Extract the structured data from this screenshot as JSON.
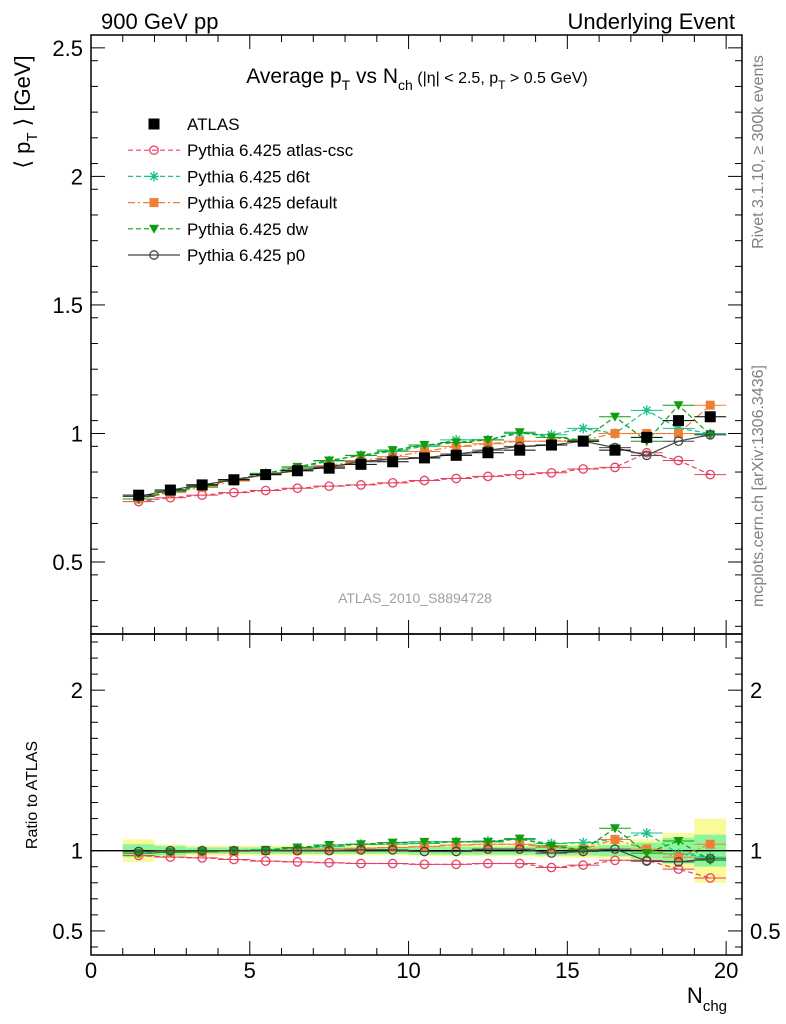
{
  "header": {
    "left": "900 GeV pp",
    "right": "Underlying Event"
  },
  "side_texts": {
    "rivet": "Rivet 3.1.10, ≥ 300k events",
    "mcplots": "mcplots.cern.ch [arXiv:1306.3436]"
  },
  "watermark": "ATLAS_2010_S8894728",
  "title": {
    "main": "Average p",
    "sub_t": "T",
    "vs": " vs N",
    "sub_ch": "ch",
    "cuts_a": "(|η| < 2.5, p",
    "cuts_t": "T",
    "cuts_b": " > 0.5 GeV)"
  },
  "ylabel": {
    "open": "⟨ p",
    "sub": "T",
    "close": " ⟩ [GeV]"
  },
  "ratio_ylabel": "Ratio to ATLAS",
  "xlabel": {
    "main": "N",
    "sub": "chg"
  },
  "colors": {
    "atlas": "#000000",
    "atlas_csc": "#e8415f",
    "d6t": "#1ac18a",
    "default": "#f07f35",
    "dw": "#109d10",
    "p0": "#444444",
    "band_inner": "#8ff59a",
    "band_outer": "#fbfa9a"
  },
  "chart_data": [
    {
      "type": "scatter",
      "panel": "main",
      "xlim": [
        0,
        20.5
      ],
      "ylim": [
        0.22,
        2.55
      ],
      "yticks": [
        0.5,
        1,
        1.5,
        2,
        2.5
      ],
      "x": [
        1.5,
        2.5,
        3.5,
        4.5,
        5.5,
        6.5,
        7.5,
        8.5,
        9.5,
        10.5,
        11.5,
        12.5,
        13.5,
        14.5,
        15.5,
        16.5,
        17.5,
        18.5,
        19.5
      ],
      "series": [
        {
          "name": "ATLAS",
          "key": "atlas",
          "marker": "square",
          "line": "none",
          "values": [
            0.76,
            0.78,
            0.8,
            0.82,
            0.84,
            0.855,
            0.865,
            0.88,
            0.89,
            0.905,
            0.915,
            0.925,
            0.935,
            0.955,
            0.97,
            0.935,
            0.985,
            1.05,
            1.065
          ]
        },
        {
          "name": "Pythia 6.425 atlas-csc",
          "key": "atlas_csc",
          "marker": "open-circle",
          "line": "dashed",
          "values": [
            0.735,
            0.75,
            0.76,
            0.77,
            0.778,
            0.787,
            0.795,
            0.8,
            0.808,
            0.817,
            0.825,
            0.833,
            0.84,
            0.847,
            0.862,
            0.868,
            0.925,
            0.895,
            0.84
          ]
        },
        {
          "name": "Pythia 6.425 d6t",
          "key": "d6t",
          "marker": "asterisk",
          "line": "dashed",
          "values": [
            0.745,
            0.775,
            0.795,
            0.82,
            0.845,
            0.865,
            0.893,
            0.915,
            0.93,
            0.95,
            0.975,
            0.975,
            1.0,
            0.995,
            1.02,
            1.0,
            1.09,
            1.02,
            1.0
          ]
        },
        {
          "name": "Pythia 6.425 default",
          "key": "default",
          "marker": "filled-square",
          "line": "dashdot",
          "values": [
            0.745,
            0.77,
            0.79,
            0.815,
            0.84,
            0.86,
            0.875,
            0.895,
            0.91,
            0.93,
            0.95,
            0.96,
            0.97,
            0.97,
            0.975,
            1.0,
            1.0,
            1.0,
            1.11
          ]
        },
        {
          "name": "Pythia 6.425 dw",
          "key": "dw",
          "marker": "down-triangle",
          "line": "dashed",
          "values": [
            0.745,
            0.775,
            0.795,
            0.82,
            0.845,
            0.87,
            0.895,
            0.915,
            0.935,
            0.955,
            0.965,
            0.975,
            1.005,
            0.985,
            0.975,
            1.065,
            0.97,
            1.11,
            0.995
          ]
        },
        {
          "name": "Pythia 6.425 p0",
          "key": "p0",
          "marker": "open-circle",
          "line": "solid",
          "values": [
            0.755,
            0.78,
            0.8,
            0.82,
            0.84,
            0.855,
            0.87,
            0.89,
            0.9,
            0.905,
            0.92,
            0.935,
            0.95,
            0.955,
            0.97,
            0.945,
            0.915,
            0.97,
            0.995
          ]
        }
      ]
    },
    {
      "type": "scatter",
      "panel": "ratio",
      "xlim": [
        0,
        20.5
      ],
      "ylim": [
        0.35,
        2.35
      ],
      "xticks": [
        0,
        5,
        10,
        15,
        20
      ],
      "yticks": [
        0.5,
        1,
        2
      ],
      "x": [
        1.5,
        2.5,
        3.5,
        4.5,
        5.5,
        6.5,
        7.5,
        8.5,
        9.5,
        10.5,
        11.5,
        12.5,
        13.5,
        14.5,
        15.5,
        16.5,
        17.5,
        18.5,
        19.5
      ],
      "band_inner": [
        0.04,
        0.03,
        0.02,
        0.02,
        0.02,
        0.02,
        0.02,
        0.02,
        0.02,
        0.025,
        0.025,
        0.025,
        0.025,
        0.03,
        0.03,
        0.035,
        0.05,
        0.08,
        0.1
      ],
      "band_outer": [
        0.07,
        0.04,
        0.03,
        0.03,
        0.03,
        0.03,
        0.03,
        0.03,
        0.03,
        0.035,
        0.035,
        0.035,
        0.035,
        0.04,
        0.045,
        0.05,
        0.07,
        0.11,
        0.2
      ],
      "series": [
        {
          "name": "Pythia 6.425 atlas-csc",
          "key": "atlas_csc",
          "marker": "open-circle",
          "line": "dashed",
          "values": [
            0.97,
            0.96,
            0.955,
            0.945,
            0.935,
            0.93,
            0.925,
            0.92,
            0.92,
            0.915,
            0.915,
            0.92,
            0.92,
            0.895,
            0.91,
            0.94,
            0.94,
            0.885,
            0.83
          ]
        },
        {
          "name": "Pythia 6.425 d6t",
          "key": "d6t",
          "marker": "asterisk",
          "line": "dashed",
          "values": [
            0.985,
            0.99,
            1.0,
            1.0,
            1.0,
            1.015,
            1.025,
            1.04,
            1.04,
            1.045,
            1.055,
            1.06,
            1.07,
            1.045,
            1.05,
            1.07,
            1.11,
            0.98,
            0.96
          ]
        },
        {
          "name": "Pythia 6.425 default",
          "key": "default",
          "marker": "filled-square",
          "line": "dashdot",
          "values": [
            0.985,
            0.99,
            0.99,
            0.995,
            1.0,
            1.005,
            1.01,
            1.015,
            1.02,
            1.025,
            1.035,
            1.04,
            1.04,
            1.02,
            1.01,
            1.07,
            1.01,
            0.96,
            1.04
          ]
        },
        {
          "name": "Pythia 6.425 dw",
          "key": "dw",
          "marker": "down-triangle",
          "line": "dashed",
          "values": [
            0.985,
            0.99,
            0.995,
            1.0,
            1.005,
            1.02,
            1.035,
            1.04,
            1.05,
            1.055,
            1.055,
            1.055,
            1.075,
            1.03,
            1.005,
            1.14,
            0.985,
            1.06,
            0.94
          ]
        },
        {
          "name": "Pythia 6.425 p0",
          "key": "p0",
          "marker": "open-circle",
          "line": "solid",
          "values": [
            0.995,
            1.0,
            1.0,
            1.0,
            1.0,
            1.0,
            1.0,
            1.005,
            1.005,
            0.995,
            0.995,
            1.01,
            1.01,
            0.985,
            0.995,
            1.01,
            0.935,
            0.93,
            0.95
          ]
        }
      ]
    }
  ]
}
